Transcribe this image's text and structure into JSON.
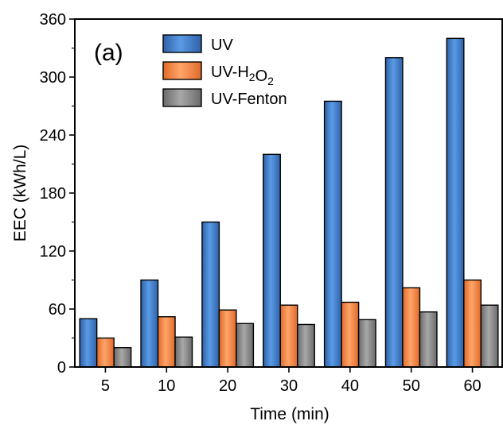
{
  "chart_data": {
    "type": "bar",
    "panel_label": "(a)",
    "title": "",
    "xlabel": "Time (min)",
    "ylabel": "EEC (kWh/L)",
    "categories": [
      "5",
      "10",
      "20",
      "30",
      "40",
      "50",
      "60"
    ],
    "ylim": [
      0,
      360
    ],
    "yticks": [
      0,
      60,
      120,
      180,
      240,
      300,
      360
    ],
    "grid": false,
    "legend_position": "top-left",
    "series": [
      {
        "name": "UV",
        "values": [
          50,
          90,
          150,
          220,
          275,
          320,
          340
        ],
        "color": "#3f7fd0"
      },
      {
        "name": "UV-H2O2",
        "legend_parts": [
          {
            "text": "UV-H",
            "sub": false
          },
          {
            "text": "2",
            "sub": true
          },
          {
            "text": "O",
            "sub": false
          },
          {
            "text": "2",
            "sub": true
          }
        ],
        "values": [
          30,
          52,
          59,
          64,
          67,
          82,
          90
        ],
        "color": "#f28a4a"
      },
      {
        "name": "UV-Fenton",
        "values": [
          20,
          31,
          45,
          44,
          49,
          57,
          64
        ],
        "color": "#8a8a8a"
      }
    ]
  }
}
